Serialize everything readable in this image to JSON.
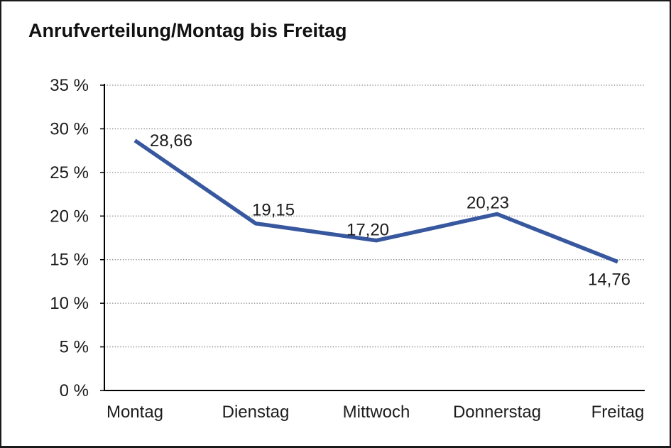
{
  "chart_data": {
    "type": "line",
    "title": "Anrufverteilung/Montag bis Freitag",
    "categories": [
      "Montag",
      "Dienstag",
      "Mittwoch",
      "Donnerstag",
      "Freitag"
    ],
    "values": [
      28.66,
      19.15,
      17.2,
      20.23,
      14.76
    ],
    "value_labels": [
      "28,66",
      "19,15",
      "17,20",
      "20,23",
      "14,76"
    ],
    "y_tick_labels": [
      "0 %",
      "5 %",
      "10 %",
      "15 %",
      "20 %",
      "25 %",
      "30 %",
      "35 %"
    ],
    "y_ticks": [
      0,
      5,
      10,
      15,
      20,
      25,
      30,
      35
    ],
    "ylim": [
      0,
      35
    ],
    "y_step": 5,
    "xlabel": "",
    "ylabel": "",
    "legend": "none",
    "grid": "horizontal-dotted",
    "line_color": "#37579f",
    "axis_color": "#000000",
    "grid_color": "#808080",
    "text_color": "#1c1c1c"
  }
}
